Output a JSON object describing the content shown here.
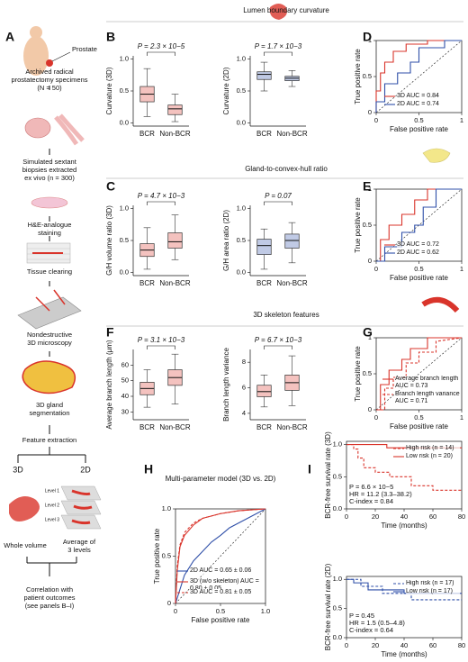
{
  "panel_labels": [
    "A",
    "B",
    "C",
    "D",
    "E",
    "F",
    "G",
    "H",
    "I"
  ],
  "sections": [
    "Lumen boundary curvature",
    "Gland-to-convex-hull ratio",
    "3D skeleton features"
  ],
  "panel_a": {
    "prostate": "Prostate",
    "steps": [
      [
        "Archived radical",
        "prostatectomy specimens",
        "(N = 50)"
      ],
      [
        "Simulated sextant",
        "biopsies extracted",
        "ex vivo (n = 300)"
      ],
      [
        "H&E-analogue",
        "staining"
      ],
      [
        "Tissue clearing"
      ],
      [
        "Nondestructive",
        "3D microscopy"
      ],
      [
        "3D gland",
        "segmentation"
      ]
    ],
    "feature_extraction": "Feature extraction",
    "branch_3d": "3D",
    "branch_2d": "2D",
    "levels": [
      "Level 1",
      "Level 2",
      "Level 3"
    ],
    "whole_volume": "Whole volume",
    "average": [
      "Average of",
      "3 levels"
    ],
    "outcome": [
      "Correlation with",
      "patient outcomes",
      "(see panels B–I)"
    ]
  },
  "chart_data": [
    {
      "type": "box",
      "annotation": "P = 2.3 × 10−5",
      "y_label": "Curvature (3D)",
      "categories": [
        "BCR",
        "Non-BCR"
      ],
      "color": "#d9342b",
      "ylim": [
        -0.05,
        1.05
      ],
      "yticks": [
        {
          "value": 0,
          "label": "0.0"
        },
        0.5,
        {
          "value": 1,
          "label": "1.0"
        }
      ],
      "q1": [
        0.33,
        0.13
      ],
      "median": [
        0.45,
        0.22
      ],
      "q3": [
        0.57,
        0.28
      ],
      "whisker_low": [
        0.1,
        0.02
      ],
      "whisker_high": [
        0.85,
        0.45
      ]
    },
    {
      "type": "box",
      "annotation": "P = 1.7 × 10−3",
      "y_label": "Curvature (2D)",
      "categories": [
        "BCR",
        "Non-BCR"
      ],
      "color": "#2f4fa8",
      "ylim": [
        -0.05,
        1.05
      ],
      "yticks": [
        {
          "value": 0,
          "label": "0.0"
        },
        0.5,
        {
          "value": 1,
          "label": "1.0"
        }
      ],
      "q1": [
        0.68,
        0.66
      ],
      "median": [
        0.76,
        0.7
      ],
      "q3": [
        0.8,
        0.73
      ],
      "whisker_low": [
        0.5,
        0.57
      ],
      "whisker_high": [
        0.95,
        0.82
      ]
    },
    {
      "type": "line",
      "x_label": "False positive rate",
      "y_label": "True positive rate",
      "xlim": [
        0,
        1
      ],
      "ylim": [
        0,
        1
      ],
      "xticks": [
        0,
        0.5,
        1
      ],
      "yticks": [
        0,
        0.5,
        1
      ],
      "diagonal": true,
      "legend": "lower right",
      "series": [
        {
          "name": "3D AUC = 0.84",
          "color": "#d9342b",
          "dashed": false,
          "x": [
            0,
            0,
            0.05,
            0.05,
            0.1,
            0.1,
            0.2,
            0.2,
            0.35,
            0.35,
            0.6,
            0.6,
            1
          ],
          "values": [
            0,
            0.3,
            0.3,
            0.55,
            0.55,
            0.7,
            0.7,
            0.85,
            0.85,
            0.95,
            0.95,
            1,
            1
          ]
        },
        {
          "name": "2D AUC = 0.74",
          "color": "#2f4fa8",
          "dashed": false,
          "x": [
            0,
            0,
            0.1,
            0.1,
            0.25,
            0.25,
            0.4,
            0.4,
            0.5,
            0.5,
            0.8,
            0.8,
            1
          ],
          "values": [
            0,
            0.15,
            0.15,
            0.4,
            0.4,
            0.55,
            0.55,
            0.7,
            0.7,
            0.9,
            0.9,
            1,
            1
          ]
        }
      ]
    },
    {
      "type": "box",
      "annotation": "P = 4.7 × 10−3",
      "y_label": "G/H volume ratio (3D)",
      "categories": [
        "BCR",
        "Non-BCR"
      ],
      "color": "#d9342b",
      "ylim": [
        -0.05,
        1.05
      ],
      "yticks": [
        {
          "value": 0,
          "label": "0.0"
        },
        0.5,
        {
          "value": 1,
          "label": "1.0"
        }
      ],
      "q1": [
        0.25,
        0.38
      ],
      "median": [
        0.35,
        0.48
      ],
      "q3": [
        0.45,
        0.62
      ],
      "whisker_low": [
        0.05,
        0.2
      ],
      "whisker_high": [
        0.7,
        0.9
      ]
    },
    {
      "type": "box",
      "annotation": "P = 0.07",
      "y_label": "G/H area ratio (2D)",
      "categories": [
        "BCR",
        "Non-BCR"
      ],
      "color": "#2f4fa8",
      "ylim": [
        -0.05,
        1.05
      ],
      "yticks": [
        {
          "value": 0,
          "label": "0.0"
        },
        0.5,
        {
          "value": 1,
          "label": "1.0"
        }
      ],
      "q1": [
        0.28,
        0.38
      ],
      "median": [
        0.42,
        0.5
      ],
      "q3": [
        0.52,
        0.6
      ],
      "whisker_low": [
        0.05,
        0.15
      ],
      "whisker_high": [
        0.68,
        0.78
      ]
    },
    {
      "type": "line",
      "x_label": "False positive rate",
      "y_label": "True positive rate",
      "xlim": [
        0,
        1
      ],
      "ylim": [
        0,
        1
      ],
      "xticks": [
        0,
        0.5,
        1
      ],
      "yticks": [
        0,
        0.5,
        1
      ],
      "diagonal": true,
      "legend": "lower right",
      "series": [
        {
          "name": "3D AUC = 0.72",
          "color": "#d9342b",
          "dashed": false,
          "x": [
            0,
            0.05,
            0.05,
            0.15,
            0.15,
            0.3,
            0.3,
            0.45,
            0.45,
            0.6,
            0.6,
            1
          ],
          "values": [
            0,
            0,
            0.3,
            0.3,
            0.5,
            0.5,
            0.65,
            0.65,
            0.85,
            0.85,
            1,
            1
          ]
        },
        {
          "name": "2D AUC = 0.62",
          "color": "#2f4fa8",
          "dashed": false,
          "x": [
            0,
            0.1,
            0.1,
            0.3,
            0.3,
            0.45,
            0.45,
            0.55,
            0.55,
            0.7,
            0.7,
            1
          ],
          "values": [
            0,
            0,
            0.2,
            0.2,
            0.4,
            0.4,
            0.5,
            0.5,
            0.75,
            0.75,
            1,
            1
          ]
        }
      ]
    },
    {
      "type": "box",
      "annotation": "P = 3.1 × 10−3",
      "y_label": "Average branch length (μm)",
      "categories": [
        "BCR",
        "Non-BCR"
      ],
      "color": "#d9342b",
      "ylim": [
        25,
        70
      ],
      "yticks": [
        30,
        40,
        50,
        60
      ],
      "q1": [
        41,
        47
      ],
      "median": [
        45,
        52
      ],
      "q3": [
        49,
        57
      ],
      "whisker_low": [
        33,
        35
      ],
      "whisker_high": [
        57,
        67
      ]
    },
    {
      "type": "box",
      "annotation": "P = 6.7 × 10−3",
      "y_label": "Branch length variance",
      "categories": [
        "BCR",
        "Non-BCR"
      ],
      "color": "#d9342b",
      "ylim": [
        3.5,
        9
      ],
      "yticks": [
        4,
        6,
        8
      ],
      "q1": [
        5.3,
        5.8
      ],
      "median": [
        5.7,
        6.4
      ],
      "q3": [
        6.2,
        7
      ],
      "whisker_low": [
        4.5,
        4.6
      ],
      "whisker_high": [
        7,
        8.5
      ]
    },
    {
      "type": "line",
      "x_label": "False positive rate",
      "y_label": "True positive rate",
      "xlim": [
        0,
        1
      ],
      "ylim": [
        0,
        1
      ],
      "xticks": [
        0,
        0.5,
        1
      ],
      "yticks": [
        0,
        0.5,
        1
      ],
      "diagonal": true,
      "legend": "lower right",
      "series": [
        {
          "name": "Average branch length AUC = 0.73",
          "color": "#d9342b",
          "dashed": false,
          "x": [
            0,
            0.05,
            0.05,
            0.15,
            0.15,
            0.3,
            0.3,
            0.4,
            0.4,
            0.6,
            0.6,
            1
          ],
          "values": [
            0,
            0,
            0.35,
            0.35,
            0.55,
            0.55,
            0.7,
            0.7,
            0.85,
            0.85,
            1,
            1
          ]
        },
        {
          "name": "Branch length variance AUC = 0.71",
          "color": "#d9342b",
          "dashed": true,
          "x": [
            0,
            0.1,
            0.1,
            0.2,
            0.2,
            0.35,
            0.35,
            0.5,
            0.5,
            0.7,
            0.7,
            1
          ],
          "values": [
            0,
            0,
            0.3,
            0.3,
            0.45,
            0.45,
            0.65,
            0.65,
            0.8,
            0.8,
            0.95,
            1
          ]
        }
      ]
    },
    {
      "type": "line",
      "title": "Multi-parameter model (3D vs. 2D)",
      "x_label": "False positive rate",
      "y_label": "True positive rate",
      "xlim": [
        0,
        1
      ],
      "ylim": [
        0,
        1
      ],
      "xticks": [
        0,
        0.5,
        {
          "value": 1,
          "label": "1.0"
        }
      ],
      "yticks": [
        0,
        0.5,
        {
          "value": 1,
          "label": "1.0"
        }
      ],
      "diagonal": true,
      "legend": "lower right",
      "series": [
        {
          "name": "2D AUC = 0.65 ± 0.06",
          "color": "#2f4fa8",
          "dashed": false,
          "x": [
            0,
            0.05,
            0.1,
            0.2,
            0.3,
            0.4,
            0.5,
            0.6,
            0.8,
            1
          ],
          "values": [
            0,
            0.15,
            0.3,
            0.45,
            0.55,
            0.65,
            0.72,
            0.8,
            0.9,
            1
          ]
        },
        {
          "name": "3D (w/o skeleton) AUC = 0.80 ± 0.05",
          "color": "#d9342b",
          "dashed": false,
          "x": [
            0,
            0.02,
            0.05,
            0.1,
            0.2,
            0.3,
            0.5,
            0.7,
            1
          ],
          "values": [
            0,
            0.35,
            0.6,
            0.72,
            0.83,
            0.9,
            0.95,
            0.98,
            1
          ]
        },
        {
          "name": "3D AUC = 0.81 ± 0.05",
          "color": "#d9342b",
          "dashed": true,
          "x": [
            0,
            0.02,
            0.05,
            0.1,
            0.2,
            0.3,
            0.5,
            0.7,
            1
          ],
          "values": [
            0,
            0.4,
            0.62,
            0.75,
            0.85,
            0.9,
            0.95,
            0.98,
            1
          ]
        }
      ]
    },
    {
      "type": "step",
      "x_label": "Time (months)",
      "y_label": "BCR-free survival rate (3D)",
      "xlim": [
        0,
        80
      ],
      "ylim": [
        0,
        1.05
      ],
      "xticks": [
        0,
        20,
        40,
        60,
        80
      ],
      "yticks": [
        {
          "value": 0,
          "label": "0.0"
        },
        0.5,
        {
          "value": 1,
          "label": "1.0"
        }
      ],
      "legend": "upper right",
      "stats": [
        "P = 6.6 × 10−5",
        "HR = 11.2 (3.3–38.2)",
        "C-index = 0.84"
      ],
      "series": [
        {
          "name": "High risk (n = 14)",
          "color": "#d9342b",
          "dashed": true,
          "x": [
            0,
            5,
            5,
            8,
            8,
            12,
            12,
            20,
            20,
            30,
            30,
            45,
            45,
            60,
            60,
            80
          ],
          "values": [
            1,
            1,
            0.93,
            0.93,
            0.79,
            0.79,
            0.64,
            0.64,
            0.57,
            0.57,
            0.5,
            0.5,
            0.36,
            0.36,
            0.29,
            0.29
          ]
        },
        {
          "name": "Low risk (n = 20)",
          "color": "#d9342b",
          "dashed": false,
          "x": [
            0,
            28,
            28,
            80
          ],
          "values": [
            1,
            1,
            0.95,
            0.95
          ]
        }
      ]
    },
    {
      "type": "step",
      "x_label": "Time (months)",
      "y_label": "BCR-free survival rate (2D)",
      "xlim": [
        0,
        80
      ],
      "ylim": [
        0,
        1.05
      ],
      "xticks": [
        0,
        20,
        40,
        60,
        80
      ],
      "yticks": [
        {
          "value": 0,
          "label": "0.0"
        },
        0.5,
        {
          "value": 1,
          "label": "1.0"
        }
      ],
      "legend": "upper right",
      "stats": [
        "P = 0.45",
        "HR = 1.5 (0.5–4.8)",
        "C-index = 0.64"
      ],
      "series": [
        {
          "name": "High risk (n = 17)",
          "color": "#2f4fa8",
          "dashed": true,
          "x": [
            0,
            10,
            10,
            25,
            25,
            45,
            45,
            80
          ],
          "values": [
            1,
            1,
            0.88,
            0.88,
            0.76,
            0.76,
            0.65,
            0.65
          ]
        },
        {
          "name": "Low risk (n = 17)",
          "color": "#2f4fa8",
          "dashed": false,
          "x": [
            0,
            5,
            5,
            15,
            15,
            40,
            40,
            80
          ],
          "values": [
            1,
            1,
            0.94,
            0.94,
            0.82,
            0.82,
            0.76,
            0.76
          ]
        }
      ]
    }
  ]
}
